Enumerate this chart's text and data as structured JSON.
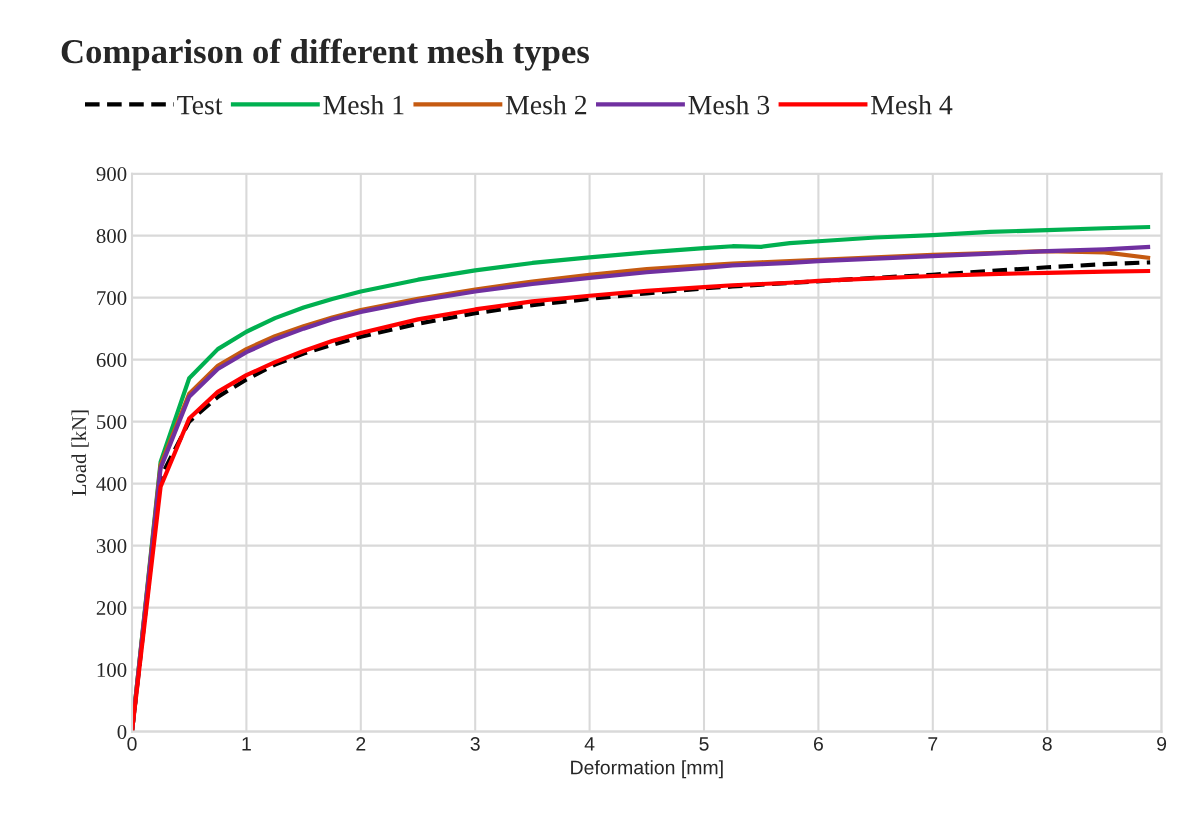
{
  "chart_data": {
    "type": "line",
    "title": "Comparison of different mesh types",
    "xlabel": "Deformation [mm]",
    "ylabel": "Load [kN]",
    "x": [
      0,
      0.25,
      0.5,
      0.75,
      1,
      1.25,
      1.5,
      1.75,
      2,
      2.5,
      3,
      3.5,
      4,
      4.5,
      5,
      5.25,
      5.5,
      5.75,
      6,
      6.5,
      7,
      7.5,
      8,
      8.5,
      8.9
    ],
    "series": [
      {
        "name": "Test",
        "color": "#000000",
        "line_style": "dashed",
        "values": [
          0,
          410,
          500,
          540,
          568,
          592,
          610,
          624,
          637,
          658,
          675,
          688,
          698,
          707,
          715,
          718,
          721,
          null,
          null,
          732,
          737,
          743,
          749,
          754,
          757
        ]
      },
      {
        "name": "Mesh 1",
        "color": "#00b050",
        "values": [
          0,
          435,
          570,
          617,
          645,
          667,
          684,
          698,
          710,
          729,
          744,
          756,
          765,
          773,
          780,
          783,
          782,
          788,
          791,
          797,
          801,
          806,
          809,
          812,
          814
        ]
      },
      {
        "name": "Mesh 2",
        "color": "#c55a11",
        "values": [
          0,
          430,
          545,
          590,
          617,
          638,
          654,
          668,
          680,
          698,
          713,
          726,
          737,
          746,
          752,
          755,
          757,
          759,
          761,
          765,
          769,
          772,
          775,
          773,
          764
        ]
      },
      {
        "name": "Mesh 3",
        "color": "#7030a0",
        "values": [
          0,
          425,
          540,
          585,
          612,
          633,
          650,
          665,
          677,
          695,
          710,
          722,
          732,
          741,
          748,
          752,
          754,
          756,
          759,
          763,
          767,
          771,
          775,
          778,
          782
        ]
      },
      {
        "name": "Mesh 4",
        "color": "#ff0000",
        "values": [
          0,
          395,
          505,
          548,
          575,
          596,
          614,
          630,
          643,
          665,
          681,
          694,
          703,
          711,
          717,
          720,
          722,
          724,
          727,
          731,
          735,
          738,
          740,
          742,
          743
        ]
      }
    ],
    "xlim": [
      0,
      9
    ],
    "xticks": [
      0,
      1,
      2,
      3,
      4,
      5,
      6,
      7,
      8,
      9
    ],
    "ylim": [
      0,
      900
    ],
    "yticks": [
      0,
      100,
      200,
      300,
      400,
      500,
      600,
      700,
      800,
      900
    ],
    "grid": true,
    "legend": "top left",
    "marker": "none",
    "line_style": "solid"
  }
}
